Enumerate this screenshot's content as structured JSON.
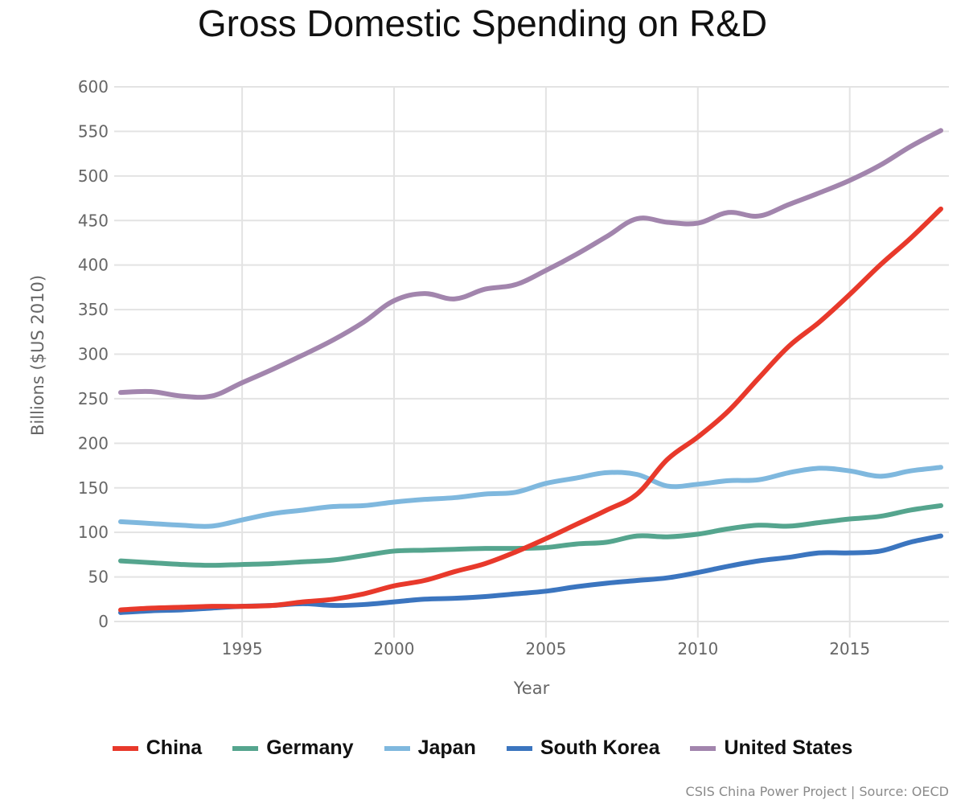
{
  "chart_data": {
    "type": "line",
    "title": "Gross Domestic Spending on R&D",
    "xlabel": "Year",
    "ylabel": "Billions ($US 2010)",
    "xlim": [
      1991,
      2018
    ],
    "ylim": [
      0,
      600
    ],
    "grid": true,
    "legend_position": "bottom",
    "x_ticks": [
      1995,
      2000,
      2005,
      2010,
      2015
    ],
    "y_ticks": [
      0,
      50,
      100,
      150,
      200,
      250,
      300,
      350,
      400,
      450,
      500,
      550,
      600
    ],
    "x": [
      1991,
      1992,
      1993,
      1994,
      1995,
      1996,
      1997,
      1998,
      1999,
      2000,
      2001,
      2002,
      2003,
      2004,
      2005,
      2006,
      2007,
      2008,
      2009,
      2010,
      2011,
      2012,
      2013,
      2014,
      2015,
      2016,
      2017,
      2018
    ],
    "series": [
      {
        "name": "China",
        "color": "#e8392b",
        "values": [
          13,
          15,
          16,
          17,
          17,
          18,
          22,
          25,
          31,
          40,
          46,
          56,
          65,
          78,
          93,
          109,
          125,
          143,
          182,
          207,
          236,
          273,
          309,
          336,
          367,
          400,
          430,
          463
        ]
      },
      {
        "name": "Germany",
        "color": "#55a58e",
        "values": [
          68,
          66,
          64,
          63,
          64,
          65,
          67,
          69,
          74,
          79,
          80,
          81,
          82,
          82,
          83,
          87,
          89,
          96,
          95,
          98,
          104,
          108,
          107,
          111,
          115,
          118,
          125,
          130
        ]
      },
      {
        "name": "Japan",
        "color": "#7fb8de",
        "values": [
          112,
          110,
          108,
          107,
          114,
          121,
          125,
          129,
          130,
          134,
          137,
          139,
          143,
          145,
          155,
          161,
          167,
          165,
          152,
          154,
          158,
          159,
          167,
          172,
          169,
          163,
          169,
          173
        ]
      },
      {
        "name": "South Korea",
        "color": "#3b75bf",
        "values": [
          10,
          12,
          13,
          15,
          17,
          18,
          20,
          18,
          19,
          22,
          25,
          26,
          28,
          31,
          34,
          39,
          43,
          46,
          49,
          55,
          62,
          68,
          72,
          77,
          77,
          79,
          89,
          96
        ]
      },
      {
        "name": "United States",
        "color": "#a285ad",
        "values": [
          257,
          258,
          253,
          253,
          268,
          283,
          299,
          316,
          336,
          360,
          368,
          362,
          373,
          378,
          394,
          412,
          432,
          452,
          448,
          447,
          459,
          455,
          468,
          481,
          495,
          512,
          533,
          551
        ]
      }
    ]
  },
  "legend": [
    {
      "label": "China",
      "color": "#e8392b"
    },
    {
      "label": "Germany",
      "color": "#55a58e"
    },
    {
      "label": "Japan",
      "color": "#7fb8de"
    },
    {
      "label": "South Korea",
      "color": "#3b75bf"
    },
    {
      "label": "United States",
      "color": "#a285ad"
    }
  ],
  "source": "CSIS China Power Project | Source: OECD"
}
